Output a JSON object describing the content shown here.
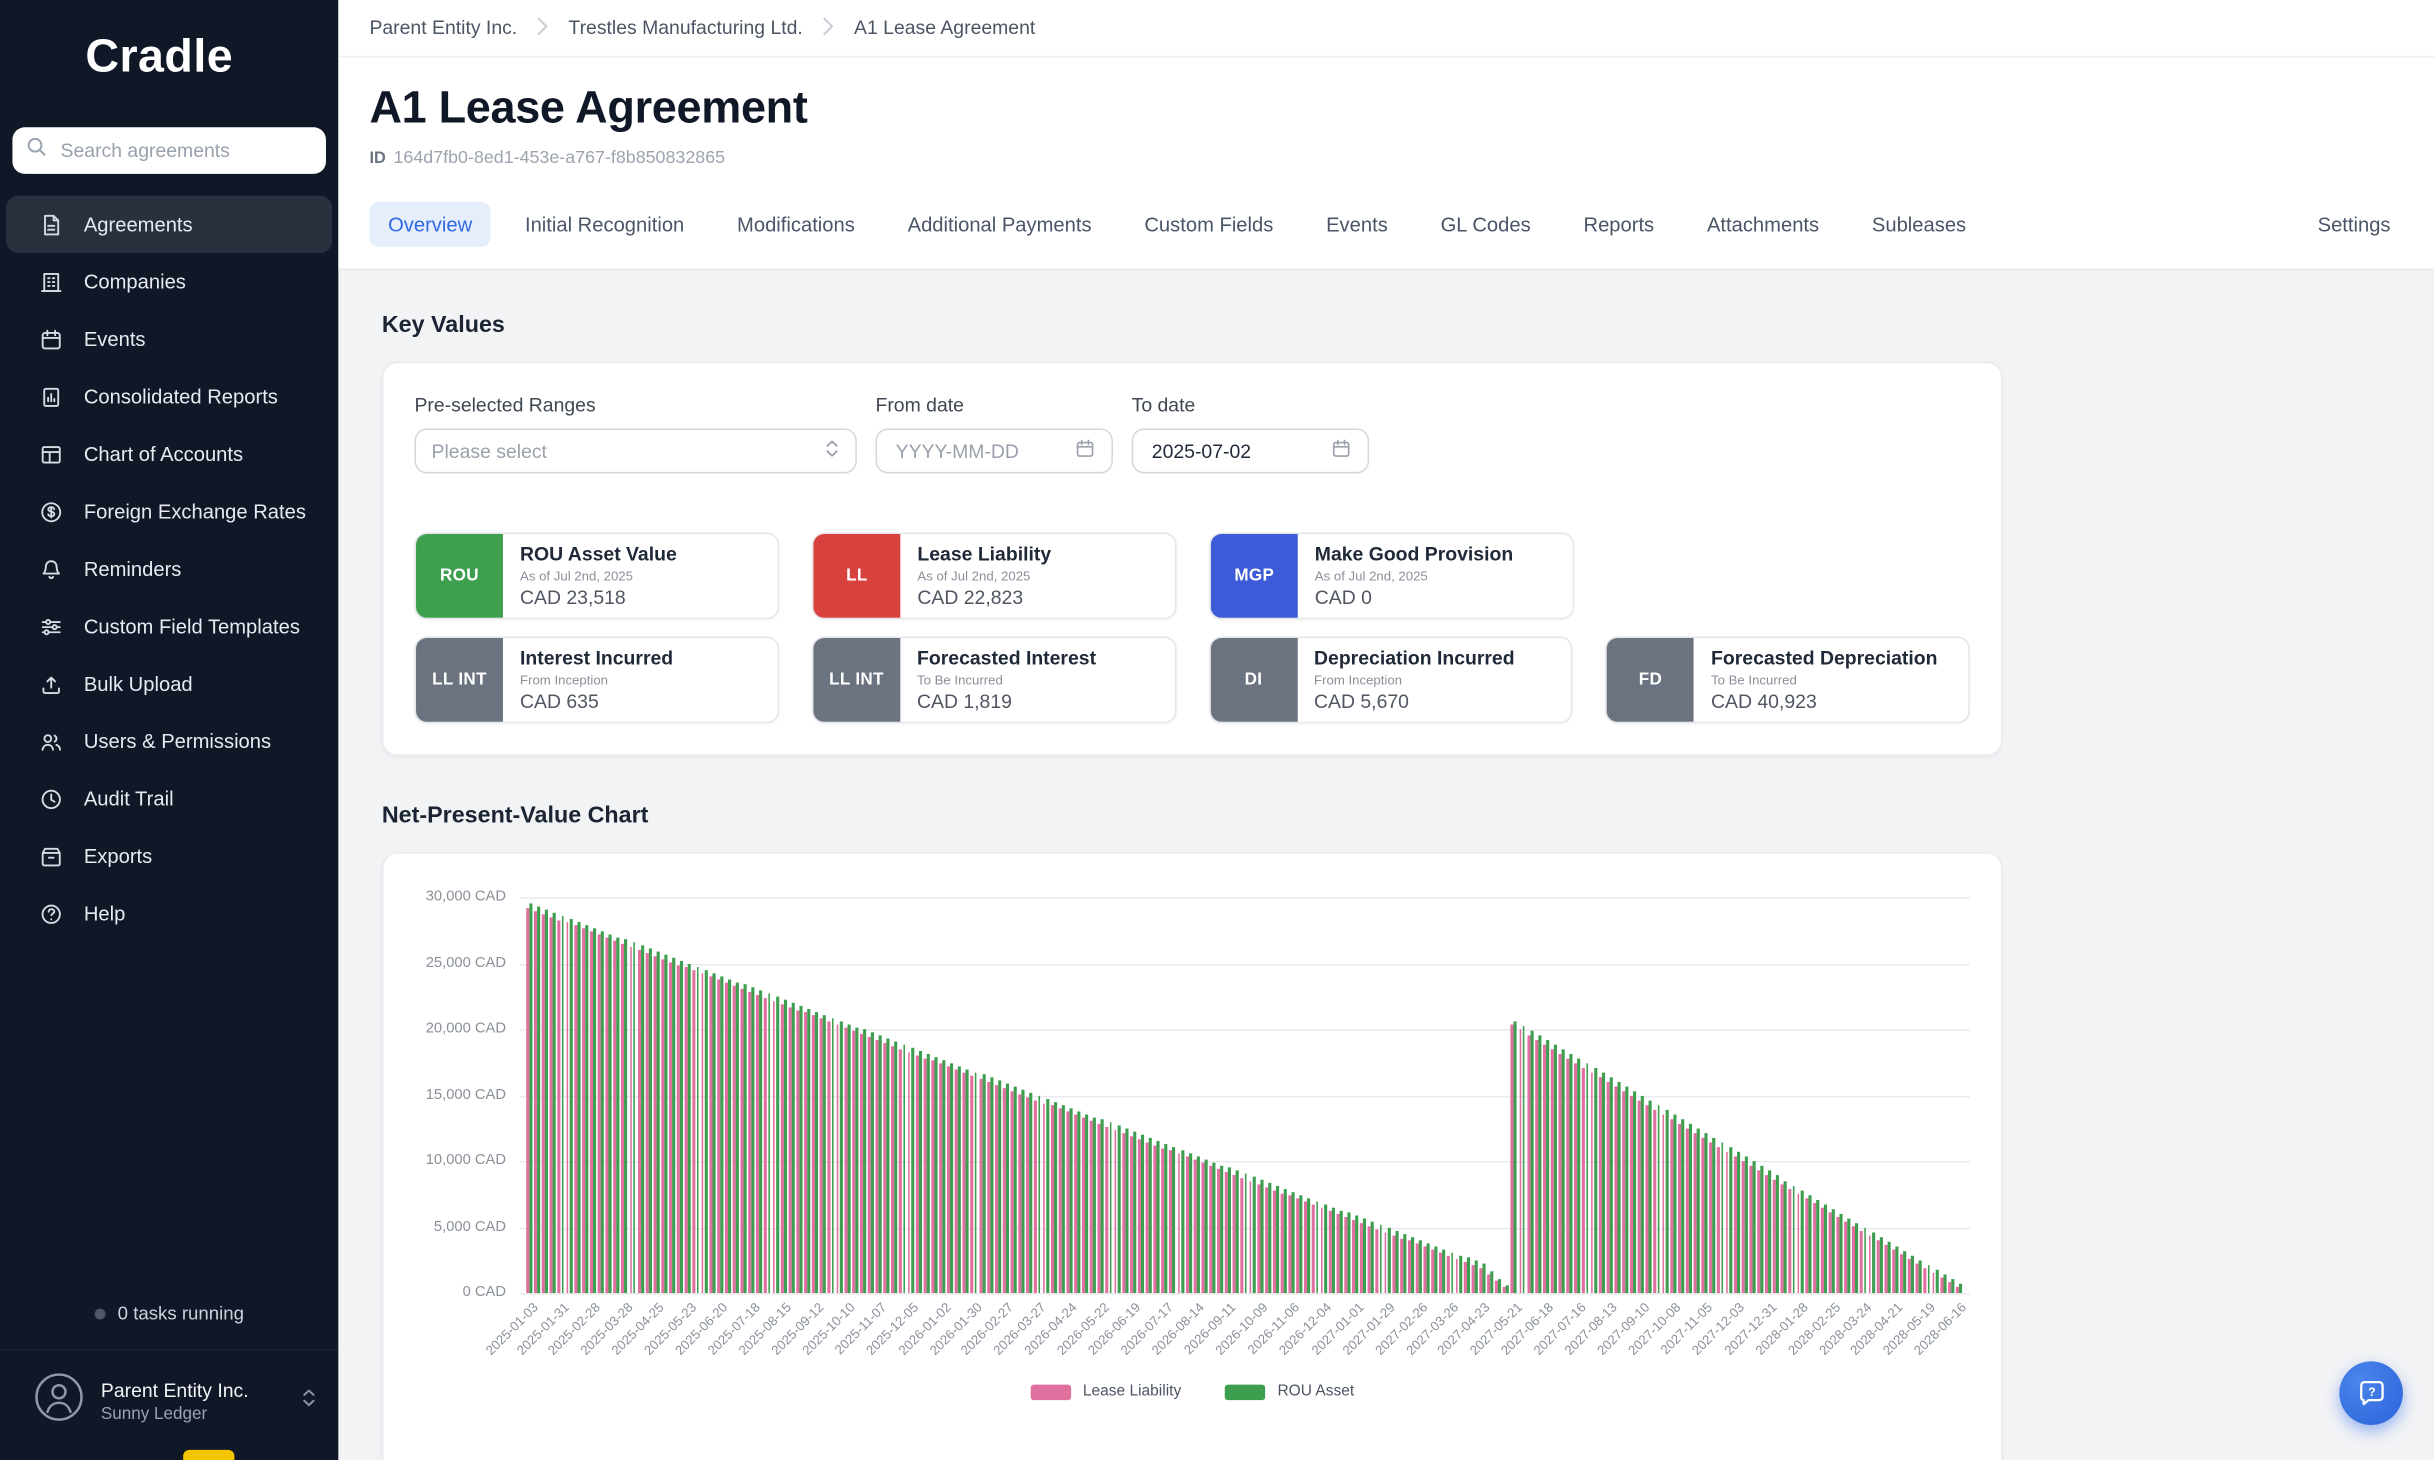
{
  "sidebar": {
    "logo": "Cradle",
    "search": {
      "placeholder": "Search agreements"
    },
    "items": [
      {
        "label": "Agreements",
        "icon": "agreements-document-icon",
        "active": true
      },
      {
        "label": "Companies",
        "icon": "building-icon",
        "active": false
      },
      {
        "label": "Events",
        "icon": "calendar-icon",
        "active": false
      },
      {
        "label": "Consolidated Reports",
        "icon": "report-chart-icon",
        "active": false
      },
      {
        "label": "Chart of Accounts",
        "icon": "ledger-table-icon",
        "active": false
      },
      {
        "label": "Foreign Exchange Rates",
        "icon": "dollar-circle-icon",
        "active": false
      },
      {
        "label": "Reminders",
        "icon": "bell-icon",
        "active": false
      },
      {
        "label": "Custom Field Templates",
        "icon": "sliders-icon",
        "active": false
      },
      {
        "label": "Bulk Upload",
        "icon": "upload-icon",
        "active": false
      },
      {
        "label": "Users & Permissions",
        "icon": "users-icon",
        "active": false
      },
      {
        "label": "Audit Trail",
        "icon": "clock-icon",
        "active": false
      },
      {
        "label": "Exports",
        "icon": "archive-icon",
        "active": false
      },
      {
        "label": "Help",
        "icon": "help-circle-icon",
        "active": false
      }
    ],
    "tasks_status": "0 tasks running",
    "account": {
      "company": "Parent Entity Inc.",
      "user": "Sunny Ledger"
    }
  },
  "breadcrumb": {
    "items": [
      "Parent Entity Inc.",
      "Trestles Manufacturing Ltd.",
      "A1 Lease Agreement"
    ]
  },
  "page": {
    "title": "A1 Lease Agreement",
    "id_label": "ID",
    "id_value": "164d7fb0-8ed1-453e-a767-f8b850832865"
  },
  "tabs": {
    "items": [
      "Overview",
      "Initial Recognition",
      "Modifications",
      "Additional Payments",
      "Custom Fields",
      "Events",
      "GL Codes",
      "Reports",
      "Attachments",
      "Subleases"
    ],
    "active": "Overview",
    "settings": "Settings"
  },
  "key_values": {
    "heading": "Key Values",
    "filters": {
      "range_label": "Pre-selected Ranges",
      "range_placeholder": "Please select",
      "from_label": "From date",
      "from_placeholder": "YYYY-MM-DD",
      "to_label": "To date",
      "to_value": "2025-07-02"
    },
    "metrics": [
      {
        "badge": "ROU",
        "color": "#3EA04F",
        "title": "ROU Asset Value",
        "subtitle": "As of Jul 2nd, 2025",
        "value": "CAD 23,518"
      },
      {
        "badge": "LL",
        "color": "#D8423C",
        "title": "Lease Liability",
        "subtitle": "As of Jul 2nd, 2025",
        "value": "CAD 22,823"
      },
      {
        "badge": "MGP",
        "color": "#3C5BD8",
        "title": "Make Good Provision",
        "subtitle": "As of Jul 2nd, 2025",
        "value": "CAD 0"
      },
      {
        "badge": "LL INT",
        "color": "#6B7280",
        "title": "Interest Incurred",
        "subtitle": "From Inception",
        "value": "CAD 635"
      },
      {
        "badge": "LL INT",
        "color": "#6B7280",
        "title": "Forecasted Interest",
        "subtitle": "To Be Incurred",
        "value": "CAD 1,819"
      },
      {
        "badge": "DI",
        "color": "#6B7280",
        "title": "Depreciation Incurred",
        "subtitle": "From Inception",
        "value": "CAD 5,670"
      },
      {
        "badge": "FD",
        "color": "#6B7280",
        "title": "Forecasted Depreciation",
        "subtitle": "To Be Incurred",
        "value": "CAD 40,923"
      }
    ]
  },
  "chart_section": {
    "heading": "Net-Present-Value Chart"
  },
  "chart_data": {
    "type": "bar",
    "title": "Net-Present-Value Chart",
    "unit": "CAD",
    "ylim": [
      0,
      30000
    ],
    "yticks": [
      0,
      5000,
      10000,
      15000,
      20000,
      25000,
      30000
    ],
    "ytick_labels": [
      "0 CAD",
      "5,000 CAD",
      "10,000 CAD",
      "15,000 CAD",
      "20,000 CAD",
      "25,000 CAD",
      "30,000 CAD"
    ],
    "grid": true,
    "legend_position": "bottom",
    "bar_substeps": 4,
    "categories": [
      "2025-01-03",
      "2025-01-31",
      "2025-02-28",
      "2025-03-28",
      "2025-04-25",
      "2025-05-23",
      "2025-06-20",
      "2025-07-18",
      "2025-08-15",
      "2025-09-12",
      "2025-10-10",
      "2025-11-07",
      "2025-12-05",
      "2026-01-02",
      "2026-01-30",
      "2026-02-27",
      "2026-03-27",
      "2026-04-24",
      "2026-05-22",
      "2026-06-19",
      "2026-07-17",
      "2026-08-14",
      "2026-09-11",
      "2026-10-09",
      "2026-11-06",
      "2026-12-04",
      "2027-01-01",
      "2027-01-29",
      "2027-02-26",
      "2027-03-26",
      "2027-04-23",
      "2027-05-21",
      "2027-06-18",
      "2027-07-16",
      "2027-08-13",
      "2027-09-10",
      "2027-10-08",
      "2027-11-05",
      "2027-12-03",
      "2027-12-31",
      "2028-01-28",
      "2028-02-25",
      "2028-03-24",
      "2028-04-21",
      "2028-05-19",
      "2028-06-16"
    ],
    "series": [
      {
        "name": "Lease Liability",
        "color": "#E0709E",
        "values": [
          29200,
          28290,
          27380,
          26470,
          25560,
          24650,
          23740,
          22830,
          21920,
          21010,
          20100,
          19190,
          18280,
          17370,
          16460,
          15550,
          14640,
          13730,
          12820,
          11910,
          11000,
          10090,
          9180,
          8270,
          7360,
          6450,
          5540,
          4630,
          3720,
          2810,
          1900,
          20300,
          18880,
          17460,
          16040,
          14620,
          13200,
          11780,
          10360,
          8940,
          7520,
          6100,
          4680,
          3260,
          1840,
          420
        ]
      },
      {
        "name": "ROU Asset",
        "color": "#3E9E4F",
        "values": [
          29500,
          28590,
          27680,
          26770,
          25860,
          24950,
          24040,
          23130,
          22220,
          21310,
          20400,
          19490,
          18580,
          17670,
          16760,
          15850,
          14940,
          14030,
          13120,
          12210,
          11300,
          10390,
          9480,
          8570,
          7660,
          6750,
          5840,
          4930,
          4020,
          3110,
          2200,
          20600,
          19180,
          17760,
          16340,
          14920,
          13500,
          12080,
          10660,
          9240,
          7820,
          6400,
          4980,
          3560,
          2140,
          720
        ]
      }
    ]
  }
}
